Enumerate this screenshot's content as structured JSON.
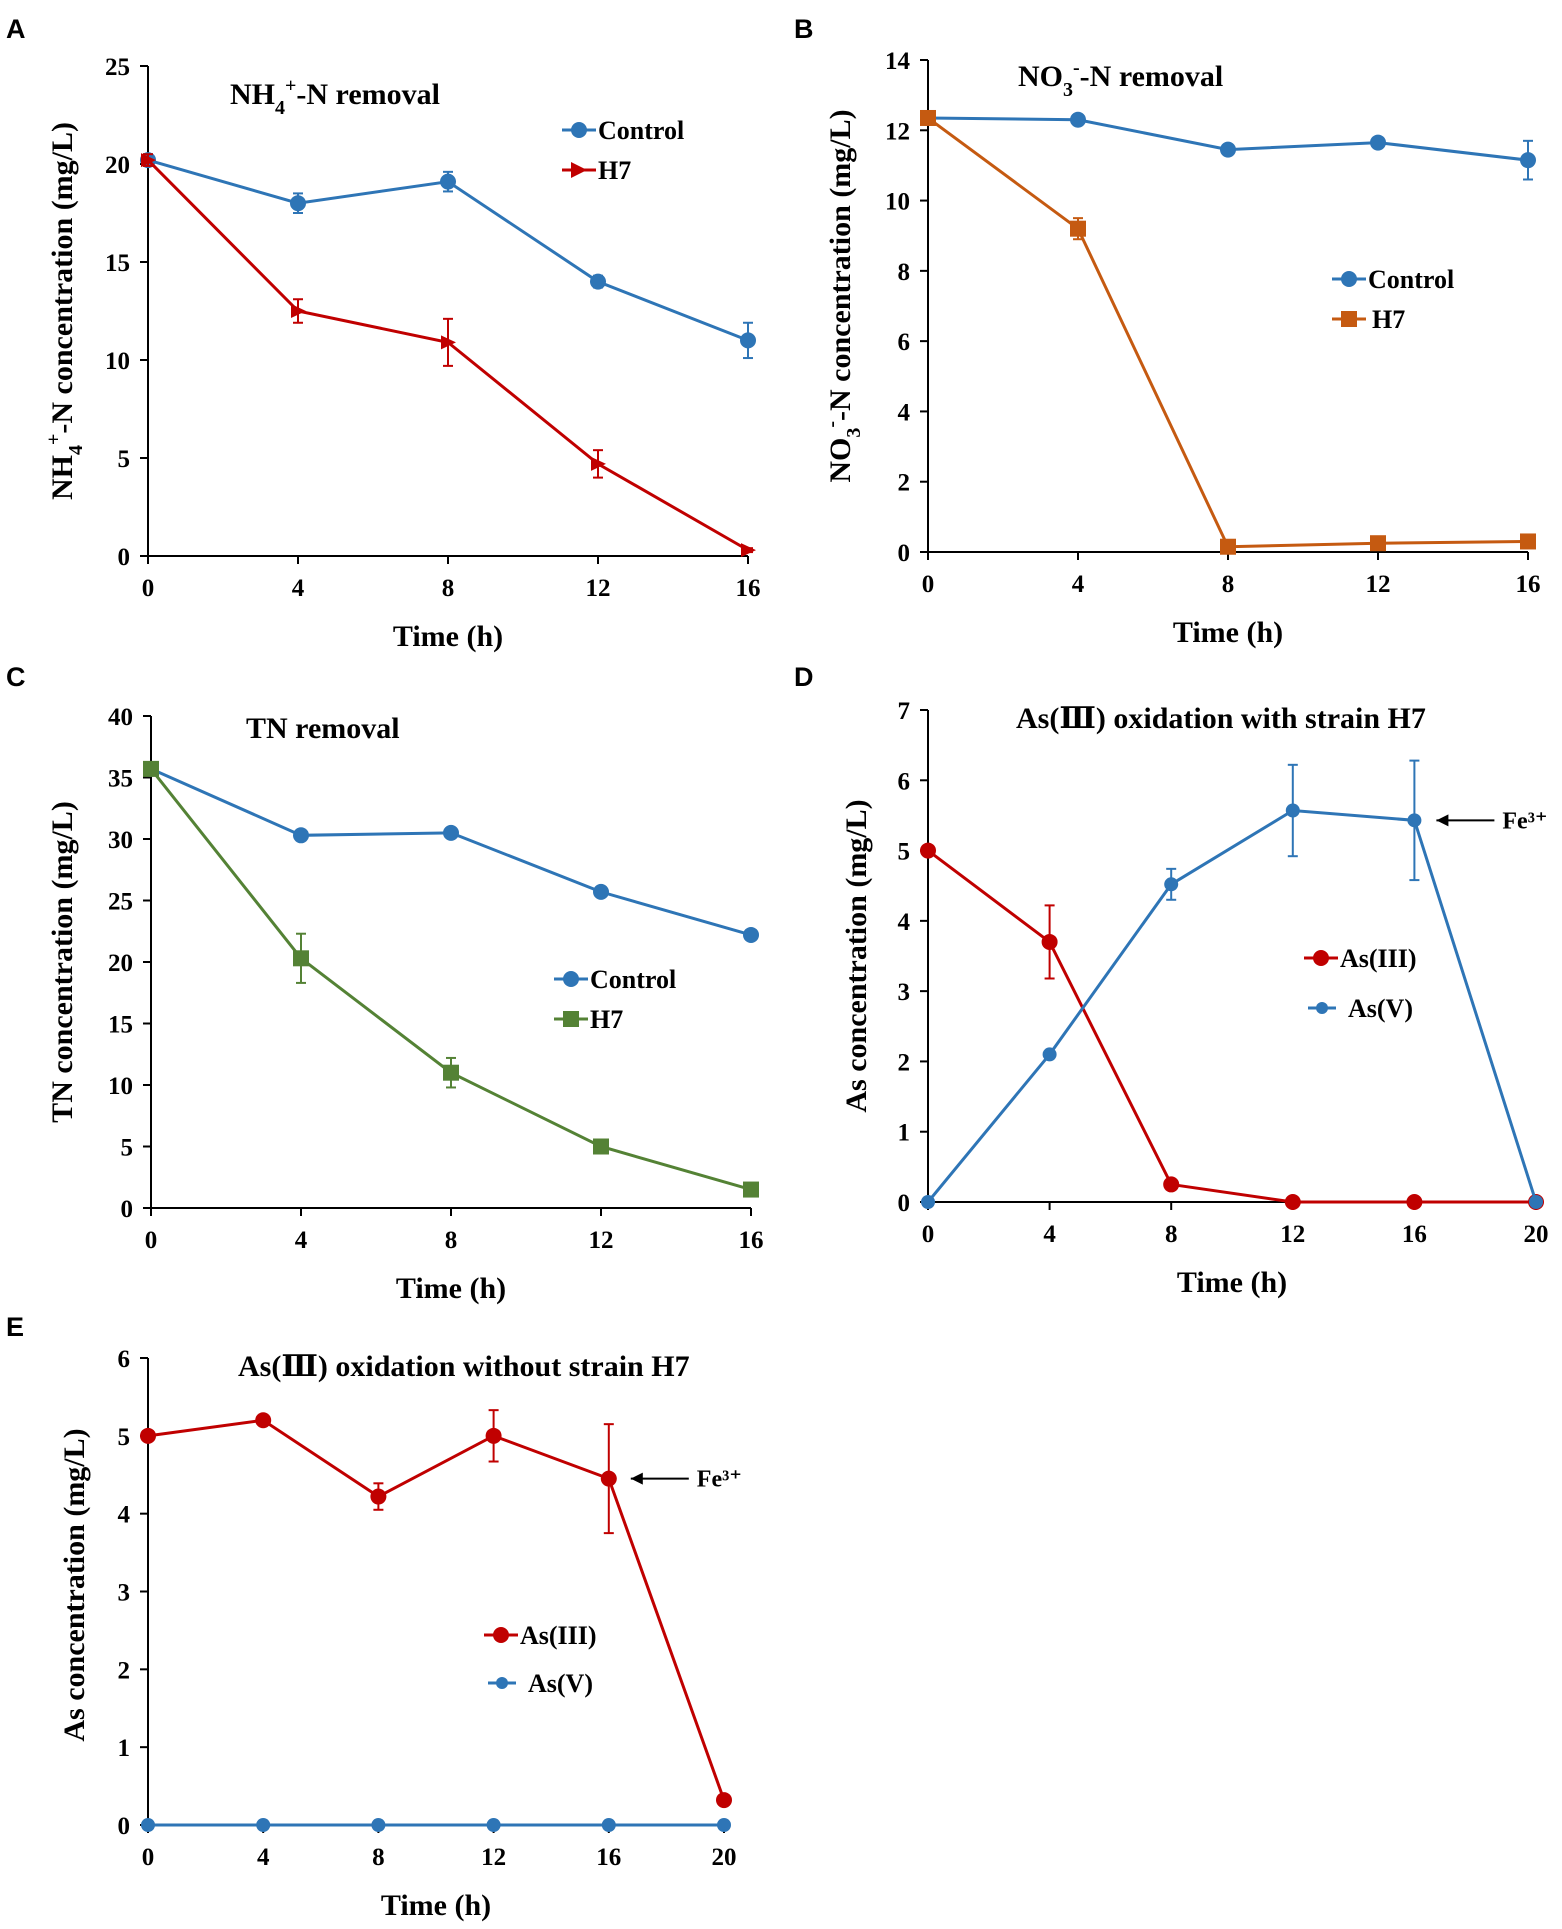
{
  "chart_data": [
    {
      "id": "A",
      "type": "line",
      "title": "NH₄⁺-N removal",
      "xlabel": "Time (h)",
      "ylabel": "NH₄⁺-N concentration (mg/L)",
      "x": [
        0,
        4,
        8,
        12,
        16
      ],
      "xlim": [
        0,
        16
      ],
      "ylim": [
        0,
        25
      ],
      "xticks": [
        0,
        4,
        8,
        12,
        16
      ],
      "yticks": [
        0,
        5,
        10,
        15,
        20,
        25
      ],
      "series": [
        {
          "name": "Control",
          "color": "#2e75b6",
          "marker": "circle",
          "values": [
            20.2,
            18.0,
            19.1,
            14.0,
            11.0
          ],
          "errors": [
            0.3,
            0.5,
            0.5,
            0.3,
            0.9
          ]
        },
        {
          "name": "H7",
          "color": "#c00000",
          "marker": "triangle-right",
          "values": [
            20.2,
            12.5,
            10.9,
            4.7,
            0.3
          ],
          "errors": [
            0.3,
            0.6,
            1.2,
            0.7,
            0.1
          ]
        }
      ]
    },
    {
      "id": "B",
      "type": "line",
      "title": "NO₃⁻-N removal",
      "xlabel": "Time (h)",
      "ylabel": "NO₃⁻-N concentration (mg/L)",
      "x": [
        0,
        4,
        8,
        12,
        16
      ],
      "xlim": [
        0,
        16
      ],
      "ylim": [
        0,
        14
      ],
      "xticks": [
        0,
        4,
        8,
        12,
        16
      ],
      "yticks": [
        0,
        2,
        4,
        6,
        8,
        10,
        12,
        14
      ],
      "series": [
        {
          "name": "Control",
          "color": "#2e75b6",
          "marker": "circle",
          "values": [
            12.35,
            12.3,
            11.45,
            11.65,
            11.15
          ],
          "errors": [
            0.1,
            0.1,
            0.1,
            0.1,
            0.55
          ]
        },
        {
          "name": "H7",
          "color": "#c55a11",
          "marker": "square",
          "values": [
            12.35,
            9.2,
            0.15,
            0.25,
            0.3
          ],
          "errors": [
            0.1,
            0.3,
            0.05,
            0.05,
            0.05
          ]
        }
      ]
    },
    {
      "id": "C",
      "type": "line",
      "title": "TN removal",
      "xlabel": "Time (h)",
      "ylabel": "TN concentration (mg/L)",
      "x": [
        0,
        4,
        8,
        12,
        16
      ],
      "xlim": [
        0,
        16
      ],
      "ylim": [
        0,
        40
      ],
      "xticks": [
        0,
        4,
        8,
        12,
        16
      ],
      "yticks": [
        0,
        5,
        10,
        15,
        20,
        25,
        30,
        35,
        40
      ],
      "series": [
        {
          "name": "Control",
          "color": "#2e75b6",
          "marker": "circle",
          "values": [
            35.7,
            30.3,
            30.5,
            25.7,
            22.2
          ],
          "errors": [
            0.3,
            0.3,
            0.3,
            0.3,
            0.3
          ]
        },
        {
          "name": "H7",
          "color": "#548235",
          "marker": "square",
          "values": [
            35.7,
            20.3,
            11.0,
            5.0,
            1.5
          ],
          "errors": [
            0.3,
            2.0,
            1.2,
            0.4,
            0.2
          ]
        }
      ]
    },
    {
      "id": "D",
      "type": "line",
      "title": "As(Ⅲ)  oxidation with strain H7",
      "xlabel": "Time (h)",
      "ylabel": "As concentration (mg/L)",
      "x": [
        0,
        4,
        8,
        12,
        16,
        20
      ],
      "xlim": [
        0,
        20
      ],
      "ylim": [
        0,
        7
      ],
      "xticks": [
        0,
        4,
        8,
        12,
        16,
        20
      ],
      "yticks": [
        0,
        1,
        2,
        3,
        4,
        5,
        6,
        7
      ],
      "annotation": {
        "text": "Fe³⁺",
        "x": 16,
        "y": 5.43
      },
      "series": [
        {
          "name": "As(III)",
          "color": "#c00000",
          "marker": "circle",
          "values": [
            5.0,
            3.7,
            0.25,
            0.0,
            0.0,
            0.0
          ],
          "errors": [
            0.05,
            0.52,
            0.05,
            0.02,
            0.02,
            0.02
          ]
        },
        {
          "name": "As(V)",
          "color": "#2e75b6",
          "marker": "circle",
          "values": [
            0.0,
            2.1,
            4.52,
            5.57,
            5.43,
            0.0
          ],
          "errors": [
            0.02,
            0.05,
            0.22,
            0.65,
            0.85,
            0.02
          ]
        }
      ]
    },
    {
      "id": "E",
      "type": "line",
      "title": "As(Ⅲ)  oxidation without strain H7",
      "xlabel": "Time (h)",
      "ylabel": "As concentration (mg/L)",
      "x": [
        0,
        4,
        8,
        12,
        16,
        20
      ],
      "xlim": [
        0,
        20
      ],
      "ylim": [
        0,
        6
      ],
      "xticks": [
        0,
        4,
        8,
        12,
        16,
        20
      ],
      "yticks": [
        0,
        1,
        2,
        3,
        4,
        5,
        6
      ],
      "annotation": {
        "text": "Fe³⁺",
        "x": 16,
        "y": 4.45
      },
      "series": [
        {
          "name": "As(III)",
          "color": "#c00000",
          "marker": "circle",
          "values": [
            5.0,
            5.2,
            4.22,
            5.0,
            4.45,
            0.32
          ],
          "errors": [
            0.05,
            0.05,
            0.17,
            0.33,
            0.7,
            0.03
          ]
        },
        {
          "name": "As(V)",
          "color": "#2e75b6",
          "marker": "circle",
          "values": [
            0.0,
            0.0,
            0.0,
            0.0,
            0.0,
            0.0
          ],
          "errors": [
            0,
            0,
            0,
            0,
            0,
            0
          ]
        }
      ]
    }
  ]
}
